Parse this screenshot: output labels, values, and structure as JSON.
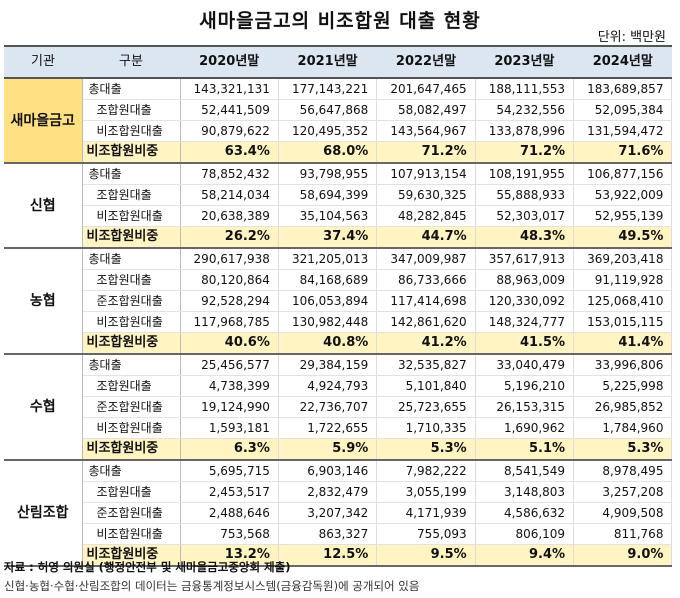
{
  "title": "새마을금고의 비조합원 대출 현황",
  "unit": "단위: 백만원",
  "headers": {
    "inst": "기관",
    "cat": "구분",
    "years": [
      "2020년말",
      "2021년말",
      "2022년말",
      "2023년말",
      "2024년말"
    ]
  },
  "groups": [
    {
      "name": "새마을금고",
      "highlight": true,
      "rows": [
        {
          "label": "총대출",
          "indent": false,
          "values": [
            "143,321,131",
            "177,143,221",
            "201,647,465",
            "188,111,553",
            "183,689,857"
          ]
        },
        {
          "label": "조합원대출",
          "indent": true,
          "values": [
            "52,441,509",
            "56,647,868",
            "58,082,497",
            "54,232,556",
            "52,095,384"
          ]
        },
        {
          "label": "비조합원대출",
          "indent": true,
          "values": [
            "90,879,622",
            "120,495,352",
            "143,564,967",
            "133,878,996",
            "131,594,472"
          ]
        }
      ],
      "ratio": {
        "label": "비조합원비중",
        "values": [
          "63.4%",
          "68.0%",
          "71.2%",
          "71.2%",
          "71.6%"
        ]
      }
    },
    {
      "name": "신협",
      "highlight": false,
      "rows": [
        {
          "label": "총대출",
          "indent": false,
          "values": [
            "78,852,432",
            "93,798,955",
            "107,913,154",
            "108,191,955",
            "106,877,156"
          ]
        },
        {
          "label": "조합원대출",
          "indent": true,
          "values": [
            "58,214,034",
            "58,694,399",
            "59,630,325",
            "55,888,933",
            "53,922,009"
          ]
        },
        {
          "label": "비조합원대출",
          "indent": true,
          "values": [
            "20,638,389",
            "35,104,563",
            "48,282,845",
            "52,303,017",
            "52,955,139"
          ]
        }
      ],
      "ratio": {
        "label": "비조합원비중",
        "values": [
          "26.2%",
          "37.4%",
          "44.7%",
          "48.3%",
          "49.5%"
        ]
      }
    },
    {
      "name": "농협",
      "highlight": false,
      "rows": [
        {
          "label": "총대출",
          "indent": false,
          "values": [
            "290,617,938",
            "321,205,013",
            "347,009,987",
            "357,617,913",
            "369,203,418"
          ]
        },
        {
          "label": "조합원대출",
          "indent": true,
          "values": [
            "80,120,864",
            "84,168,689",
            "86,733,666",
            "88,963,009",
            "91,119,928"
          ]
        },
        {
          "label": "준조합원대출",
          "indent": true,
          "values": [
            "92,528,294",
            "106,053,894",
            "117,414,698",
            "120,330,092",
            "125,068,410"
          ]
        },
        {
          "label": "비조합원대출",
          "indent": true,
          "values": [
            "117,968,785",
            "130,982,448",
            "142,861,620",
            "148,324,777",
            "153,015,115"
          ]
        }
      ],
      "ratio": {
        "label": "비조합원비중",
        "values": [
          "40.6%",
          "40.8%",
          "41.2%",
          "41.5%",
          "41.4%"
        ]
      }
    },
    {
      "name": "수협",
      "highlight": false,
      "rows": [
        {
          "label": "총대출",
          "indent": false,
          "values": [
            "25,456,577",
            "29,384,159",
            "32,535,827",
            "33,040,479",
            "33,996,806"
          ]
        },
        {
          "label": "조합원대출",
          "indent": true,
          "values": [
            "4,738,399",
            "4,924,793",
            "5,101,840",
            "5,196,210",
            "5,225,998"
          ]
        },
        {
          "label": "준조합원대출",
          "indent": true,
          "values": [
            "19,124,990",
            "22,736,707",
            "25,723,655",
            "26,153,315",
            "26,985,852"
          ]
        },
        {
          "label": "비조합원대출",
          "indent": true,
          "values": [
            "1,593,181",
            "1,722,655",
            "1,710,335",
            "1,690,962",
            "1,784,960"
          ]
        }
      ],
      "ratio": {
        "label": "비조합원비중",
        "values": [
          "6.3%",
          "5.9%",
          "5.3%",
          "5.1%",
          "5.3%"
        ]
      }
    },
    {
      "name": "산림조합",
      "highlight": false,
      "rows": [
        {
          "label": "총대출",
          "indent": false,
          "values": [
            "5,695,715",
            "6,903,146",
            "7,982,222",
            "8,541,549",
            "8,978,495"
          ]
        },
        {
          "label": "조합원대출",
          "indent": true,
          "values": [
            "2,453,517",
            "2,832,479",
            "3,055,199",
            "3,148,803",
            "3,257,208"
          ]
        },
        {
          "label": "준조합원대출",
          "indent": true,
          "values": [
            "2,488,646",
            "3,207,342",
            "4,171,939",
            "4,586,632",
            "4,909,508"
          ]
        },
        {
          "label": "비조합원대출",
          "indent": true,
          "values": [
            "753,568",
            "863,327",
            "755,093",
            "806,109",
            "811,768"
          ]
        }
      ],
      "ratio": {
        "label": "비조합원비중",
        "values": [
          "13.2%",
          "12.5%",
          "9.5%",
          "9.4%",
          "9.0%"
        ]
      }
    }
  ],
  "source": "자료 : 허영 의원실 (행정안전부 및 새마을금고중앙회 제출)",
  "note": "신협·농협·수협·산림조합의 데이터는 금융통계정보시스템(금융감독원)에 공개되어 있음"
}
